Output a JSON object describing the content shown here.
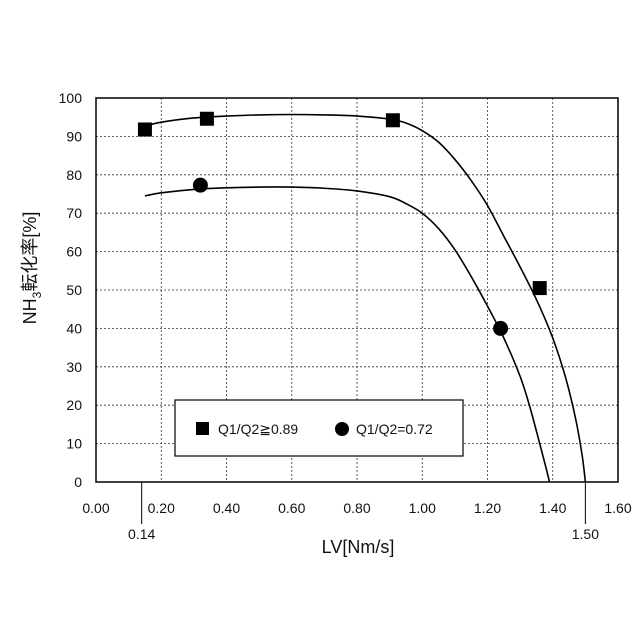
{
  "chart_data": {
    "type": "scatter",
    "xlabel": "LV[Nm/s]",
    "ylabel_main": "NH",
    "ylabel_sub": "3",
    "ylabel_rest": "転化率[%]",
    "xlim": [
      0,
      1.6
    ],
    "ylim": [
      0,
      100
    ],
    "x_ticks": [
      "0.00",
      "0.20",
      "0.40",
      "0.60",
      "0.80",
      "1.00",
      "1.20",
      "1.40",
      "1.60"
    ],
    "y_ticks": [
      "0",
      "10",
      "20",
      "30",
      "40",
      "50",
      "60",
      "70",
      "80",
      "90",
      "100"
    ],
    "extra_x_labels": [
      {
        "x": 0.14,
        "text": "0.14"
      },
      {
        "x": 1.5,
        "text": "1.50"
      }
    ],
    "grid": "dashed",
    "legend_placement": "bottom-center",
    "series": [
      {
        "name": "Q1/Q2≧0.89",
        "marker": "square",
        "points": [
          {
            "x": 0.15,
            "y": 91.8
          },
          {
            "x": 0.34,
            "y": 94.6
          },
          {
            "x": 0.91,
            "y": 94.2
          },
          {
            "x": 1.36,
            "y": 50.5
          }
        ],
        "curve": [
          [
            0.14,
            92.5
          ],
          [
            0.2,
            93.7
          ],
          [
            0.3,
            94.8
          ],
          [
            0.4,
            95.3
          ],
          [
            0.5,
            95.6
          ],
          [
            0.6,
            95.7
          ],
          [
            0.7,
            95.6
          ],
          [
            0.8,
            95.3
          ],
          [
            0.9,
            94.5
          ],
          [
            0.95,
            93.5
          ],
          [
            1.0,
            91.5
          ],
          [
            1.05,
            88.5
          ],
          [
            1.1,
            84.0
          ],
          [
            1.15,
            78.5
          ],
          [
            1.2,
            72.0
          ],
          [
            1.25,
            64.0
          ],
          [
            1.3,
            56.0
          ],
          [
            1.35,
            47.5
          ],
          [
            1.4,
            37.5
          ],
          [
            1.44,
            27.0
          ],
          [
            1.47,
            16.5
          ],
          [
            1.49,
            7.0
          ],
          [
            1.5,
            0.0
          ]
        ]
      },
      {
        "name": "Q1/Q2=0.72",
        "marker": "circle",
        "points": [
          {
            "x": 0.32,
            "y": 77.3
          },
          {
            "x": 1.24,
            "y": 40.0
          }
        ],
        "curve": [
          [
            0.15,
            74.5
          ],
          [
            0.2,
            75.3
          ],
          [
            0.3,
            76.2
          ],
          [
            0.4,
            76.6
          ],
          [
            0.5,
            76.8
          ],
          [
            0.6,
            76.8
          ],
          [
            0.7,
            76.5
          ],
          [
            0.8,
            75.8
          ],
          [
            0.9,
            74.3
          ],
          [
            0.95,
            72.5
          ],
          [
            1.0,
            70.0
          ],
          [
            1.05,
            66.0
          ],
          [
            1.1,
            60.5
          ],
          [
            1.15,
            53.5
          ],
          [
            1.2,
            45.8
          ],
          [
            1.25,
            37.5
          ],
          [
            1.3,
            27.5
          ],
          [
            1.33,
            19.5
          ],
          [
            1.36,
            10.0
          ],
          [
            1.38,
            3.5
          ],
          [
            1.39,
            0.0
          ]
        ]
      }
    ]
  }
}
